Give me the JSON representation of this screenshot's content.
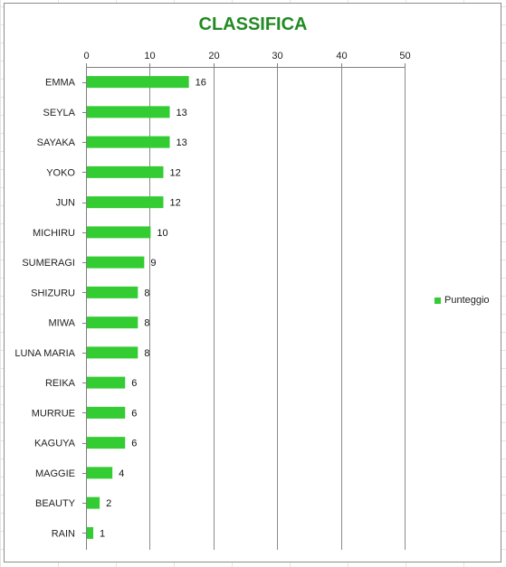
{
  "chart_data": {
    "type": "bar",
    "orientation": "horizontal",
    "title": "CLASSIFICA",
    "categories": [
      "EMMA",
      "SEYLA",
      "SAYAKA",
      "YOKO",
      "JUN",
      "MICHIRU",
      "SUMERAGI",
      "SHIZURU",
      "MIWA",
      "LUNA MARIA",
      "REIKA",
      "MURRUE",
      "KAGUYA",
      "MAGGIE",
      "BEAUTY",
      "RAIN"
    ],
    "series": [
      {
        "name": "Punteggio",
        "values": [
          16,
          13,
          13,
          12,
          12,
          10,
          9,
          8,
          8,
          8,
          6,
          6,
          6,
          4,
          2,
          1
        ]
      }
    ],
    "xlim": [
      0,
      50
    ],
    "xticks": [
      0,
      10,
      20,
      30,
      40,
      50
    ],
    "xaxis_position": "top",
    "grid": true,
    "legend_position": "right",
    "bar_color": "#33cc33",
    "title_color": "#218a21",
    "data_labels": true
  }
}
